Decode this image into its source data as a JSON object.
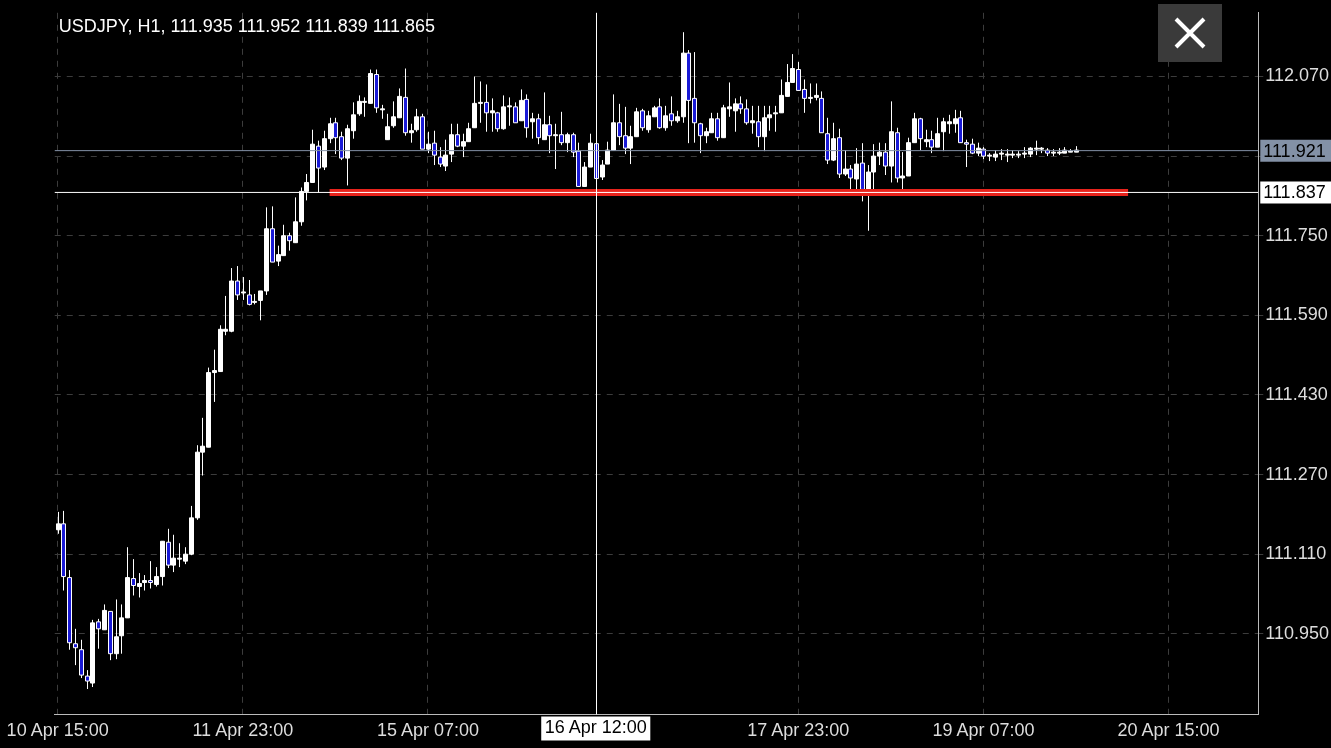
{
  "chart_data": {
    "type": "candlestick",
    "title": "USDJPY, H1, 111.935 111.952 111.839 111.865",
    "categories": [
      "10 Apr 15:00",
      null,
      null,
      null,
      null,
      null,
      null,
      null,
      null,
      null,
      null,
      null,
      null,
      null,
      null,
      null,
      null,
      null,
      null,
      null,
      null,
      null,
      null,
      null,
      null,
      null,
      null,
      null,
      null,
      null,
      null,
      null,
      "11 Apr 23:00",
      null,
      null,
      null,
      null,
      null,
      null,
      null,
      null,
      null,
      null,
      null,
      null,
      null,
      null,
      null,
      null,
      null,
      null,
      null,
      null,
      null,
      null,
      null,
      null,
      null,
      null,
      null,
      null,
      null,
      null,
      null,
      "15 Apr 07:00",
      null,
      null,
      null,
      null,
      null,
      null,
      null,
      null,
      null,
      null,
      null,
      null,
      null,
      null,
      null,
      null,
      null,
      null,
      null,
      null,
      null,
      null,
      null,
      null,
      null,
      null,
      null,
      null,
      "16 Apr 12:00",
      null,
      null,
      null,
      null,
      null,
      null,
      null,
      null,
      null,
      null,
      null,
      null,
      null,
      null,
      null,
      null,
      null,
      null,
      null,
      null,
      null,
      null,
      null,
      null,
      null,
      null,
      null,
      null,
      null,
      null,
      null,
      null,
      null,
      null,
      "17 Apr 23:00",
      null,
      null,
      null,
      null,
      null,
      null,
      null,
      null,
      null,
      null,
      null,
      null,
      null,
      null,
      null,
      null,
      null,
      null,
      null,
      null,
      null,
      null,
      null,
      null,
      null,
      null,
      null,
      null,
      null,
      null,
      null,
      "19 Apr 07:00",
      null,
      null,
      null,
      null,
      null,
      null,
      null,
      null,
      null,
      null,
      null,
      null,
      null,
      null,
      null,
      null,
      null,
      null,
      null,
      null,
      null,
      null,
      null,
      null,
      null,
      null,
      null,
      null,
      null,
      null,
      null,
      "20 Apr 15:00",
      null,
      null,
      null,
      null,
      null,
      null,
      null,
      null,
      null,
      null,
      null,
      null,
      null,
      null,
      null
    ],
    "ohlc": [
      [
        111.159,
        111.195,
        111.151,
        111.171
      ],
      [
        111.171,
        111.197,
        111.037,
        111.065
      ],
      [
        111.063,
        111.078,
        110.918,
        110.932
      ],
      [
        110.93,
        110.96,
        110.887,
        110.922
      ],
      [
        110.918,
        110.938,
        110.861,
        110.867
      ],
      [
        110.865,
        110.877,
        110.839,
        110.855
      ],
      [
        110.851,
        110.978,
        110.843,
        110.972
      ],
      [
        110.974,
        110.98,
        110.92,
        110.96
      ],
      [
        110.958,
        111.009,
        110.958,
        110.997
      ],
      [
        110.995,
        110.995,
        110.897,
        110.91
      ],
      [
        110.91,
        111.019,
        110.899,
        110.944
      ],
      [
        110.946,
        111.009,
        110.91,
        110.982
      ],
      [
        110.982,
        111.124,
        110.982,
        111.063
      ],
      [
        111.061,
        111.1,
        111.027,
        111.047
      ],
      [
        111.045,
        111.072,
        111.023,
        111.051
      ],
      [
        111.053,
        111.068,
        111.037,
        111.057
      ],
      [
        111.057,
        111.096,
        111.041,
        111.053
      ],
      [
        111.049,
        111.084,
        111.045,
        111.065
      ],
      [
        111.065,
        111.136,
        111.047,
        111.136
      ],
      [
        111.134,
        111.161,
        111.082,
        111.088
      ],
      [
        111.088,
        111.149,
        111.074,
        111.102
      ],
      [
        111.1,
        111.132,
        111.084,
        111.102
      ],
      [
        111.096,
        111.124,
        111.09,
        111.11
      ],
      [
        111.11,
        111.207,
        111.108,
        111.183
      ],
      [
        111.183,
        111.329,
        111.179,
        111.315
      ],
      [
        111.315,
        111.384,
        111.268,
        111.327
      ],
      [
        111.325,
        111.485,
        111.325,
        111.475
      ],
      [
        111.475,
        111.521,
        111.416,
        111.479
      ],
      [
        111.477,
        111.57,
        111.477,
        111.562
      ],
      [
        111.558,
        111.629,
        111.55,
        111.562
      ],
      [
        111.558,
        111.685,
        111.556,
        111.659
      ],
      [
        111.659,
        111.689,
        111.621,
        111.631
      ],
      [
        111.635,
        111.667,
        111.621,
        111.637
      ],
      [
        111.631,
        111.661,
        111.61,
        111.612
      ],
      [
        111.616,
        111.633,
        111.612,
        111.618
      ],
      [
        111.62,
        111.639,
        111.58,
        111.639
      ],
      [
        111.639,
        111.807,
        111.631,
        111.764
      ],
      [
        111.764,
        111.809,
        111.697,
        111.697
      ],
      [
        111.699,
        111.73,
        111.689,
        111.712
      ],
      [
        111.71,
        111.772,
        111.71,
        111.75
      ],
      [
        111.75,
        111.756,
        111.72,
        111.74
      ],
      [
        111.736,
        111.827,
        111.736,
        111.778
      ],
      [
        111.778,
        111.847,
        111.77,
        111.839
      ],
      [
        111.839,
        111.874,
        111.821,
        111.857
      ],
      [
        111.857,
        111.963,
        111.857,
        111.934
      ],
      [
        111.93,
        111.941,
        111.837,
        111.886
      ],
      [
        111.888,
        111.961,
        111.882,
        111.945
      ],
      [
        111.945,
        111.987,
        111.936,
        111.975
      ],
      [
        111.977,
        111.987,
        111.914,
        111.947
      ],
      [
        111.949,
        111.959,
        111.902,
        111.906
      ],
      [
        111.906,
        111.973,
        111.851,
        111.965
      ],
      [
        111.961,
        112.018,
        111.945,
        111.993
      ],
      [
        111.995,
        112.032,
        111.991,
        112.02
      ],
      [
        112.018,
        112.028,
        111.989,
        112.02
      ],
      [
        112.016,
        112.084,
        112.016,
        112.076
      ],
      [
        112.074,
        112.084,
        111.997,
        112.007
      ],
      [
        112.003,
        112.013,
        111.985,
        112.005
      ],
      [
        111.943,
        111.995,
        111.943,
        111.969
      ],
      [
        111.971,
        112.02,
        111.967,
        111.989
      ],
      [
        111.987,
        112.046,
        111.987,
        112.03
      ],
      [
        112.028,
        112.086,
        111.951,
        111.957
      ],
      [
        111.957,
        111.975,
        111.937,
        111.961
      ],
      [
        111.963,
        112.005,
        111.959,
        111.989
      ],
      [
        111.989,
        111.995,
        111.924,
        111.924
      ],
      [
        111.924,
        111.959,
        111.916,
        111.934
      ],
      [
        111.936,
        111.961,
        111.892,
        111.912
      ],
      [
        111.908,
        111.928,
        111.888,
        111.894
      ],
      [
        111.89,
        111.943,
        111.88,
        111.912
      ],
      [
        111.914,
        111.975,
        111.898,
        111.953
      ],
      [
        111.953,
        111.975,
        111.928,
        111.93
      ],
      [
        111.93,
        111.955,
        111.908,
        111.939
      ],
      [
        111.939,
        111.977,
        111.939,
        111.965
      ],
      [
        111.967,
        112.07,
        111.967,
        112.016
      ],
      [
        112.016,
        112.06,
        111.977,
        112.018
      ],
      [
        112.018,
        112.054,
        111.959,
        111.997
      ],
      [
        111.997,
        112.026,
        111.959,
        112.001
      ],
      [
        111.997,
        111.999,
        111.959,
        111.965
      ],
      [
        111.965,
        112.032,
        111.963,
        112.009
      ],
      [
        112.009,
        112.028,
        111.971,
        112.011
      ],
      [
        112.009,
        112.018,
        111.977,
        111.977
      ],
      [
        111.981,
        112.044,
        111.981,
        112.022
      ],
      [
        112.024,
        112.034,
        111.947,
        111.967
      ],
      [
        111.979,
        111.997,
        111.945,
        111.985
      ],
      [
        111.985,
        111.995,
        111.934,
        111.947
      ],
      [
        111.943,
        112.038,
        111.943,
        111.973
      ],
      [
        111.973,
        111.991,
        111.916,
        111.951
      ],
      [
        111.951,
        111.975,
        111.884,
        111.953
      ],
      [
        111.953,
        111.999,
        111.932,
        111.937
      ],
      [
        111.937,
        111.957,
        111.918,
        111.953
      ],
      [
        111.953,
        111.957,
        111.908,
        111.918
      ],
      [
        111.92,
        111.937,
        111.849,
        111.849
      ],
      [
        111.849,
        111.898,
        111.849,
        111.888
      ],
      [
        111.888,
        111.955,
        111.888,
        111.936
      ],
      [
        111.935,
        111.952,
        111.839,
        111.865
      ],
      [
        111.868,
        111.902,
        111.862,
        111.892
      ],
      [
        111.894,
        111.939,
        111.894,
        111.922
      ],
      [
        111.922,
        112.034,
        111.922,
        111.977
      ],
      [
        111.977,
        112.015,
        111.932,
        111.949
      ],
      [
        111.951,
        112.009,
        111.914,
        111.926
      ],
      [
        111.926,
        111.971,
        111.894,
        111.949
      ],
      [
        111.949,
        112.007,
        111.949,
        111.999
      ],
      [
        112.001,
        112.005,
        111.961,
        111.967
      ],
      [
        111.963,
        112.001,
        111.957,
        111.991
      ],
      [
        111.989,
        112.011,
        111.989,
        112.007
      ],
      [
        112.009,
        112.026,
        111.965,
        111.967
      ],
      [
        111.967,
        112.011,
        111.961,
        111.991
      ],
      [
        111.995,
        112.03,
        111.971,
        111.981
      ],
      [
        111.981,
        112.001,
        111.977,
        111.989
      ],
      [
        111.989,
        112.159,
        111.977,
        112.117
      ],
      [
        112.117,
        112.123,
        111.936,
        112.022
      ],
      [
        112.026,
        112.119,
        111.937,
        111.977
      ],
      [
        111.975,
        111.977,
        111.916,
        111.951
      ],
      [
        111.951,
        111.967,
        111.936,
        111.959
      ],
      [
        111.957,
        111.997,
        111.957,
        111.985
      ],
      [
        111.985,
        111.997,
        111.941,
        111.947
      ],
      [
        111.947,
        112.013,
        111.947,
        112.007
      ],
      [
        112.005,
        112.058,
        111.989,
        112.009
      ],
      [
        112.001,
        112.026,
        111.959,
        112.015
      ],
      [
        112.015,
        112.03,
        111.995,
        112.005
      ],
      [
        112.005,
        112.024,
        111.973,
        111.977
      ],
      [
        111.977,
        112.011,
        111.955,
        111.981
      ],
      [
        111.979,
        112.011,
        111.928,
        111.949
      ],
      [
        111.949,
        112.011,
        111.92,
        111.987
      ],
      [
        111.987,
        112.011,
        111.961,
        111.993
      ],
      [
        111.995,
        112.011,
        111.959,
        111.997
      ],
      [
        111.997,
        112.064,
        111.997,
        112.032
      ],
      [
        112.03,
        112.095,
        112.03,
        112.058
      ],
      [
        112.058,
        112.115,
        112.058,
        112.086
      ],
      [
        112.084,
        112.099,
        112.042,
        112.042
      ],
      [
        112.044,
        112.064,
        111.997,
        112.026
      ],
      [
        112.026,
        112.056,
        112.016,
        112.028
      ],
      [
        112.028,
        112.056,
        112.022,
        112.032
      ],
      [
        112.026,
        112.04,
        111.957,
        111.957
      ],
      [
        111.955,
        111.987,
        111.894,
        111.902
      ],
      [
        111.902,
        111.977,
        111.9,
        111.945
      ],
      [
        111.947,
        111.965,
        111.866,
        111.874
      ],
      [
        111.874,
        111.922,
        111.87,
        111.884
      ],
      [
        111.884,
        111.892,
        111.841,
        111.866
      ],
      [
        111.864,
        111.926,
        111.841,
        111.894
      ],
      [
        111.896,
        111.936,
        111.819,
        111.843
      ],
      [
        111.843,
        111.892,
        111.76,
        111.878
      ],
      [
        111.878,
        111.934,
        111.833,
        111.91
      ],
      [
        111.91,
        111.937,
        111.892,
        111.918
      ],
      [
        111.918,
        111.936,
        111.872,
        111.89
      ],
      [
        111.89,
        112.02,
        111.857,
        111.959
      ],
      [
        111.957,
        111.967,
        111.857,
        111.866
      ],
      [
        111.866,
        111.918,
        111.841,
        111.87
      ],
      [
        111.87,
        111.947,
        111.87,
        111.937
      ],
      [
        111.937,
        111.997,
        111.937,
        111.985
      ],
      [
        111.985,
        111.987,
        111.922,
        111.945
      ],
      [
        111.939,
        111.963,
        111.928,
        111.943
      ],
      [
        111.943,
        111.961,
        111.916,
        111.928
      ],
      [
        111.928,
        111.987,
        111.928,
        111.955
      ],
      [
        111.959,
        111.987,
        111.92,
        111.979
      ],
      [
        111.975,
        111.993,
        111.955,
        111.979
      ],
      [
        111.975,
        112.003,
        111.957,
        111.985
      ],
      [
        111.987,
        112.001,
        111.937,
        111.937
      ],
      [
        111.937,
        111.943,
        111.888,
        111.934
      ],
      [
        111.934,
        111.945,
        111.914,
        111.916
      ],
      [
        111.916,
        111.937,
        111.91,
        111.926
      ],
      [
        111.924,
        111.928,
        111.904,
        111.91
      ],
      [
        111.91,
        111.916,
        111.9,
        111.912
      ],
      [
        111.908,
        111.922,
        111.9,
        111.914
      ],
      [
        111.914,
        111.924,
        111.902,
        111.916
      ],
      [
        111.912,
        111.924,
        111.898,
        111.914
      ],
      [
        111.912,
        111.922,
        111.906,
        111.914
      ],
      [
        111.912,
        111.92,
        111.906,
        111.914
      ],
      [
        111.914,
        111.928,
        111.906,
        111.916
      ],
      [
        111.914,
        111.928,
        111.908,
        111.926
      ],
      [
        111.924,
        111.941,
        111.912,
        111.926
      ],
      [
        111.924,
        111.928,
        111.916,
        111.926
      ],
      [
        111.922,
        111.926,
        111.91,
        111.916
      ],
      [
        111.916,
        111.924,
        111.91,
        111.918
      ],
      [
        111.916,
        111.926,
        111.912,
        111.918
      ],
      [
        111.916,
        111.928,
        111.916,
        111.922
      ],
      [
        111.918,
        111.924,
        111.918,
        111.92
      ],
      [
        111.918,
        111.93,
        111.918,
        111.922
      ],
      null,
      null,
      null,
      null,
      null,
      null,
      null,
      null,
      null,
      null,
      null,
      null,
      null,
      null,
      null,
      null,
      null,
      null,
      null,
      null,
      null,
      null,
      null,
      null,
      null,
      null,
      null,
      null,
      null,
      null,
      null
    ],
    "series": [
      {
        "type": "line",
        "color": "#e8231c",
        "values": [
          null,
          null,
          null,
          null,
          null,
          null,
          null,
          null,
          null,
          null,
          null,
          null,
          null,
          null,
          null,
          null,
          null,
          null,
          null,
          null,
          null,
          null,
          null,
          null,
          null,
          null,
          null,
          null,
          null,
          null,
          null,
          null,
          null,
          null,
          null,
          null,
          null,
          null,
          null,
          null,
          null,
          null,
          null,
          null,
          null,
          null,
          null,
          111.837,
          null,
          null,
          null,
          null,
          null,
          null,
          null,
          null,
          null,
          null,
          null,
          null,
          null,
          null,
          null,
          null,
          null,
          null,
          null,
          null,
          null,
          null,
          null,
          null,
          null,
          null,
          null,
          null,
          null,
          null,
          null,
          null,
          null,
          null,
          null,
          null,
          null,
          null,
          null,
          null,
          null,
          null,
          null,
          null,
          null,
          null,
          null,
          null,
          null,
          null,
          null,
          null,
          null,
          null,
          null,
          null,
          null,
          null,
          null,
          null,
          null,
          null,
          null,
          null,
          null,
          null,
          null,
          null,
          null,
          null,
          null,
          null,
          null,
          null,
          null,
          null,
          null,
          null,
          null,
          null,
          null,
          null,
          null,
          null,
          null,
          null,
          null,
          null,
          null,
          null,
          null,
          null,
          null,
          null,
          null,
          null,
          null,
          null,
          null,
          null,
          null,
          null,
          null,
          null,
          null,
          null,
          null,
          null,
          null,
          null,
          null,
          null,
          null,
          null,
          null,
          null,
          null,
          null,
          null,
          null,
          null,
          null,
          null,
          null,
          null,
          null,
          null,
          null,
          null,
          null,
          null,
          null,
          null,
          null,
          null,
          null,
          null,
          111.837,
          null,
          null,
          null,
          null,
          null,
          null,
          null,
          null,
          null,
          null,
          null,
          null,
          null,
          null,
          null,
          null,
          null,
          null,
          null,
          null,
          null,
          null
        ]
      }
    ],
    "ylim": [
      110.788,
      112.198
    ],
    "yticks": [
      {
        "value": 110.95,
        "label": "110.950"
      },
      {
        "value": 111.11,
        "label": "111.110"
      },
      {
        "value": 111.27,
        "label": "111.270"
      },
      {
        "value": 111.43,
        "label": "111.430"
      },
      {
        "value": 111.59,
        "label": "111.590"
      },
      {
        "value": 111.75,
        "label": "111.750"
      },
      {
        "value": 111.91,
        "label": null
      },
      {
        "value": 112.07,
        "label": "112.070"
      }
    ],
    "ref_lines": [
      {
        "axis": "y",
        "value": 111.921,
        "label": "111.921",
        "color": "#8391a6"
      },
      {
        "axis": "y",
        "value": 111.837,
        "label": "111.837",
        "color": "#ffffff"
      },
      {
        "axis": "x",
        "value": "16 Apr 12:00",
        "color": "#ffffff"
      }
    ],
    "grid": true
  }
}
